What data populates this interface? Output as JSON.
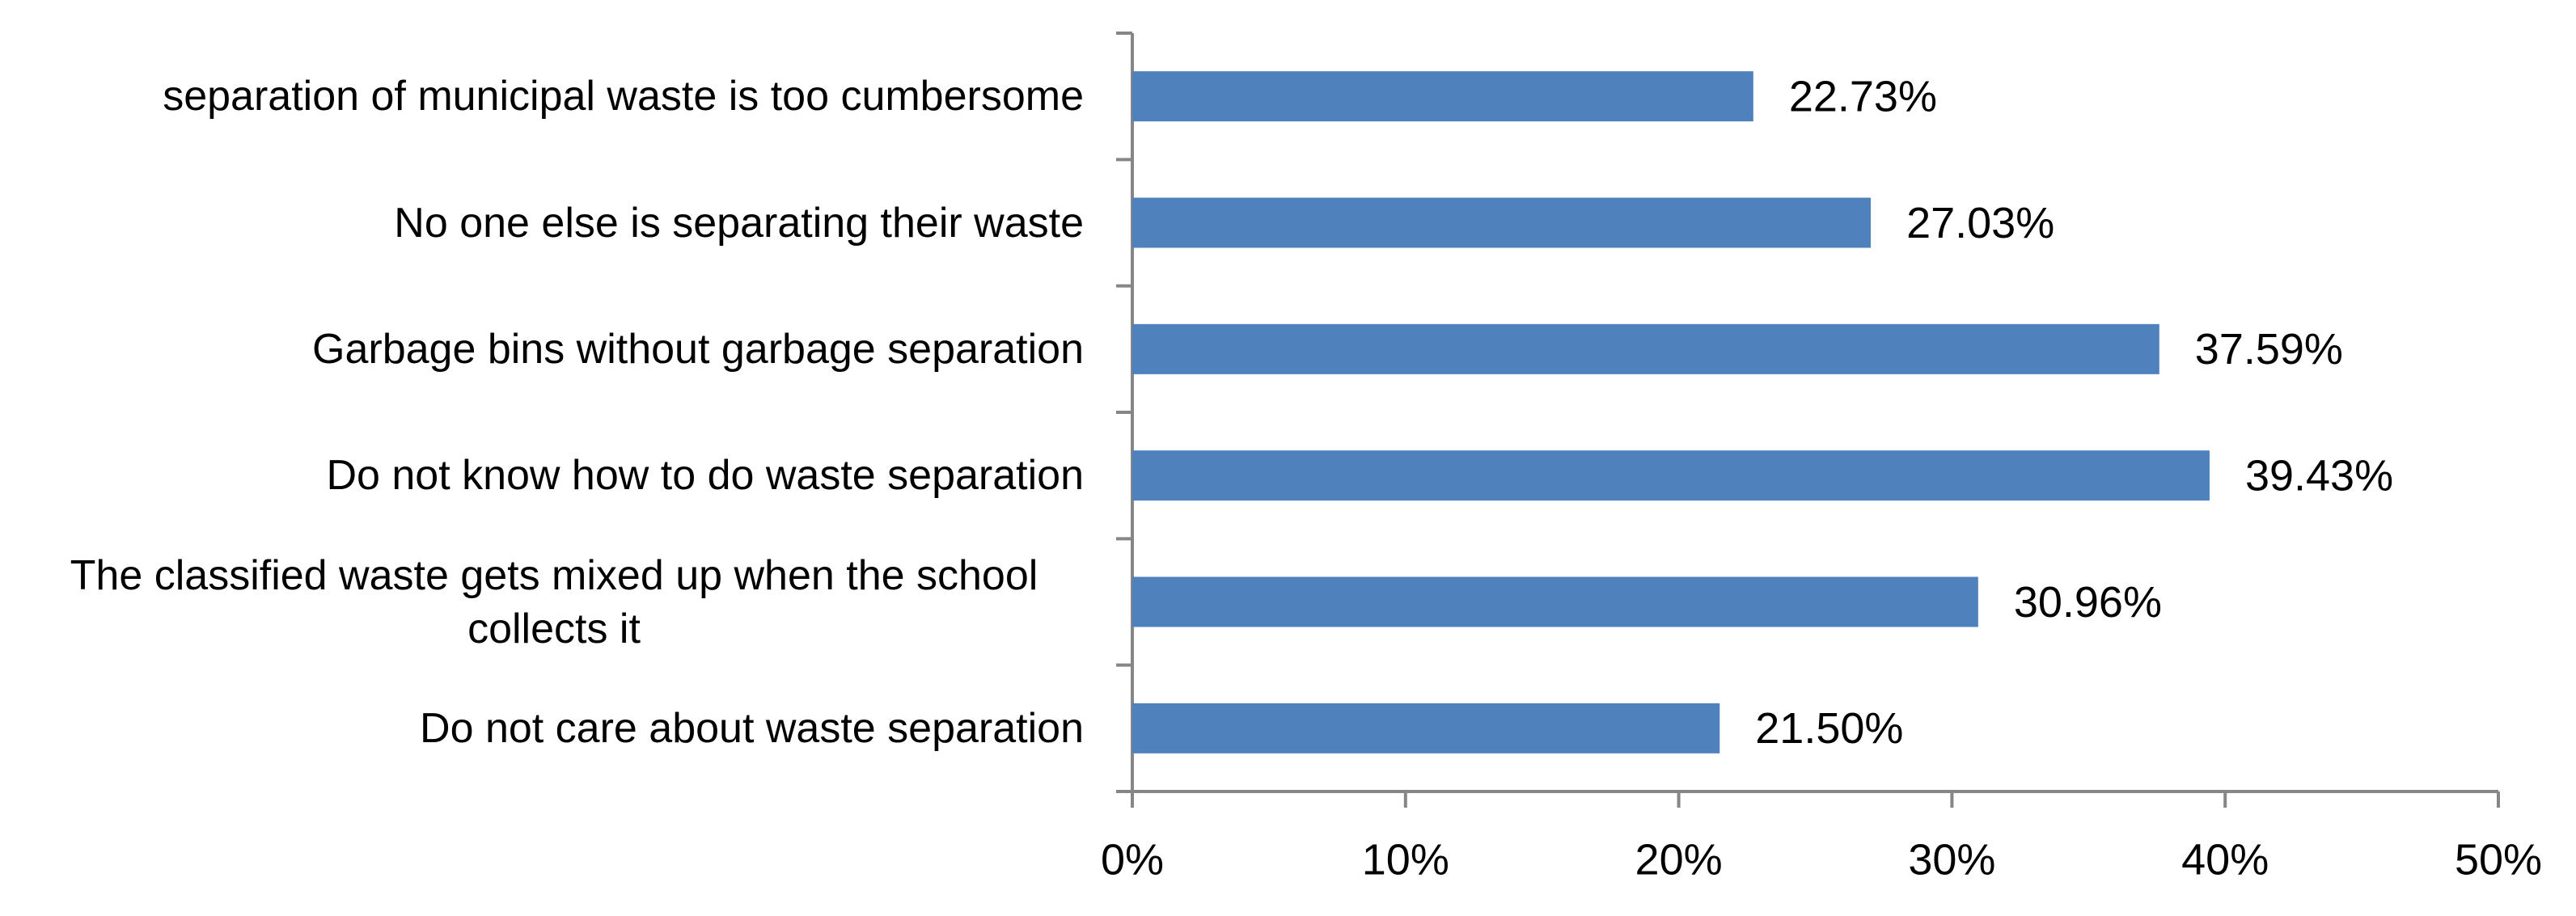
{
  "chart_data": {
    "type": "bar",
    "orientation": "horizontal",
    "categories": [
      "separation of municipal waste is too cumbersome",
      "No one else is separating their waste",
      "Garbage bins without garbage separation",
      "Do not know how to do waste separation",
      "The classified waste gets mixed up when the school collects it",
      "Do not care about waste separation"
    ],
    "values": [
      22.73,
      27.03,
      37.59,
      39.43,
      30.96,
      21.5
    ],
    "value_labels": [
      "22.73%",
      "27.03%",
      "37.59%",
      "39.43%",
      "30.96%",
      "21.50%"
    ],
    "color": "#4f81bd",
    "xlim": [
      0,
      50
    ],
    "xticks": [
      {
        "value": 0,
        "label": "0%"
      },
      {
        "value": 10,
        "label": "10%"
      },
      {
        "value": 20,
        "label": "20%"
      },
      {
        "value": 30,
        "label": "30%"
      },
      {
        "value": 40,
        "label": "40%"
      },
      {
        "value": 50,
        "label": "50%"
      }
    ],
    "grid": false
  }
}
